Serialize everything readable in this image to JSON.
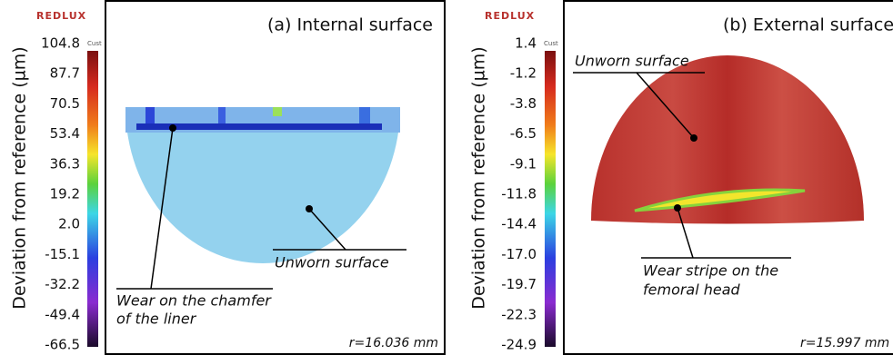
{
  "panels": [
    {
      "brand": "REDLUX",
      "cust": "Cust",
      "axis_label": "Deviation from reference (µm)",
      "scale": [
        "104.8",
        "87.7",
        "70.5",
        "53.4",
        "36.3",
        "19.2",
        "2.0",
        "-15.1",
        "-32.2",
        "-49.4",
        "-66.5"
      ],
      "title": "(a) Internal surface",
      "annotations": [
        {
          "lines": [
            "Wear on the chamfer",
            "of the liner"
          ]
        },
        {
          "lines": [
            "Unworn surface"
          ]
        }
      ],
      "radius": "r=16.036 mm"
    },
    {
      "brand": "REDLUX",
      "cust": "Cust",
      "axis_label": "Deviation from reference (µm)",
      "scale": [
        "1.4",
        "-1.2",
        "-3.8",
        "-6.5",
        "-9.1",
        "-11.8",
        "-14.4",
        "-17.0",
        "-19.7",
        "-22.3",
        "-24.9"
      ],
      "title": "(b) External surface",
      "annotations": [
        {
          "lines": [
            "Unworn surface"
          ]
        },
        {
          "lines": [
            "Wear stripe on the",
            "femoral head"
          ]
        }
      ],
      "radius": "r=15.997 mm"
    }
  ]
}
